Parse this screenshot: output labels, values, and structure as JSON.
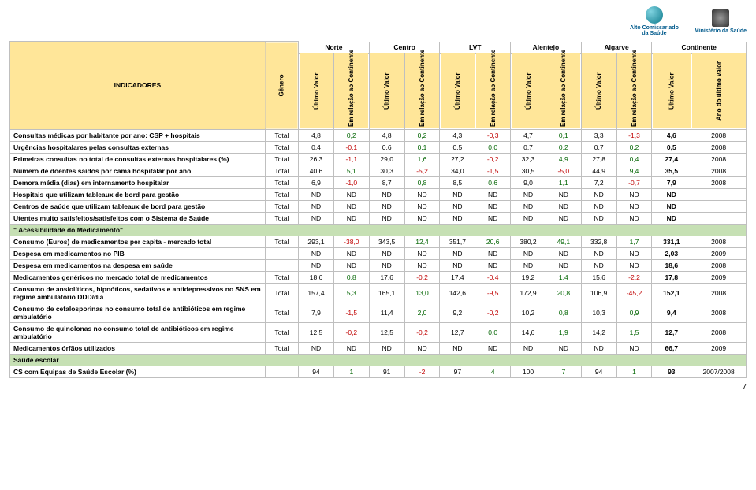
{
  "logos": [
    {
      "name": "logo-acs",
      "text1": "Alto Comissariado",
      "text2": "da Saúde",
      "color": "#17a2b8"
    },
    {
      "name": "logo-min",
      "text1": "Ministério da Saúde",
      "text2": "",
      "color": "#555555"
    }
  ],
  "regions": [
    "Norte",
    "Centro",
    "LVT",
    "Alentejo",
    "Algarve",
    "Continente"
  ],
  "col_labels": {
    "indicadores": "INDICADORES",
    "genero": "Gênero",
    "ultimo_valor": "Último Valor",
    "em_relacao": "Em relação ao Continente",
    "ano": "Ano do último valor"
  },
  "colors": {
    "header_bg": "#ffe699",
    "section_bg": "#c6e0b4",
    "border": "#bfbfbf",
    "neg": "#c00000",
    "pos": "#006400"
  },
  "rows": [
    {
      "type": "data",
      "label": "Consultas médicas por habitante por ano: CSP + hospitais",
      "gen": "Total",
      "vals": [
        "4,8",
        "0,2",
        "4,8",
        "0,2",
        "4,3",
        "-0,3",
        "4,7",
        "0,1",
        "3,3",
        "-1,3"
      ],
      "cont": "4,6",
      "year": "2008"
    },
    {
      "type": "data",
      "label": "Urgências hospitalares pelas consultas externas",
      "gen": "Total",
      "vals": [
        "0,4",
        "-0,1",
        "0,6",
        "0,1",
        "0,5",
        "0,0",
        "0,7",
        "0,2",
        "0,7",
        "0,2"
      ],
      "cont": "0,5",
      "year": "2008"
    },
    {
      "type": "data",
      "label": "Primeiras consultas no total de consultas externas hospitalares (%)",
      "gen": "Total",
      "vals": [
        "26,3",
        "-1,1",
        "29,0",
        "1,6",
        "27,2",
        "-0,2",
        "32,3",
        "4,9",
        "27,8",
        "0,4"
      ],
      "cont": "27,4",
      "year": "2008"
    },
    {
      "type": "data",
      "label": "Número de doentes saídos por cama hospitalar por ano",
      "gen": "Total",
      "vals": [
        "40,6",
        "5,1",
        "30,3",
        "-5,2",
        "34,0",
        "-1,5",
        "30,5",
        "-5,0",
        "44,9",
        "9,4"
      ],
      "cont": "35,5",
      "year": "2008"
    },
    {
      "type": "data",
      "label": "Demora média (dias) em internamento hospitalar",
      "gen": "Total",
      "vals": [
        "6,9",
        "-1,0",
        "8,7",
        "0,8",
        "8,5",
        "0,6",
        "9,0",
        "1,1",
        "7,2",
        "-0,7"
      ],
      "cont": "7,9",
      "year": "2008"
    },
    {
      "type": "data",
      "label": "Hospitais que utilizam tableaux de bord para gestão",
      "gen": "Total",
      "vals": [
        "ND",
        "ND",
        "ND",
        "ND",
        "ND",
        "ND",
        "ND",
        "ND",
        "ND",
        "ND"
      ],
      "cont": "ND",
      "year": ""
    },
    {
      "type": "data",
      "label": "Centros de saúde que utilizam tableaux de bord para gestão",
      "gen": "Total",
      "vals": [
        "ND",
        "ND",
        "ND",
        "ND",
        "ND",
        "ND",
        "ND",
        "ND",
        "ND",
        "ND"
      ],
      "cont": "ND",
      "year": ""
    },
    {
      "type": "data",
      "label": "Utentes muito satisfeitos/satisfeitos com o Sistema de Saúde",
      "gen": "Total",
      "vals": [
        "ND",
        "ND",
        "ND",
        "ND",
        "ND",
        "ND",
        "ND",
        "ND",
        "ND",
        "ND"
      ],
      "cont": "ND",
      "year": ""
    },
    {
      "type": "section",
      "label": "\" Acessibilidade do Medicamento\""
    },
    {
      "type": "data",
      "label": "Consumo (Euros) de medicamentos per capita - mercado total",
      "gen": "Total",
      "vals": [
        "293,1",
        "-38,0",
        "343,5",
        "12,4",
        "351,7",
        "20,6",
        "380,2",
        "49,1",
        "332,8",
        "1,7"
      ],
      "cont": "331,1",
      "year": "2008"
    },
    {
      "type": "data",
      "label": "Despesa em medicamentos no PIB",
      "gen": "",
      "vals": [
        "ND",
        "ND",
        "ND",
        "ND",
        "ND",
        "ND",
        "ND",
        "ND",
        "ND",
        "ND"
      ],
      "cont": "2,03",
      "year": "2009"
    },
    {
      "type": "data",
      "label": "Despesa em medicamentos na despesa em saúde",
      "gen": "",
      "vals": [
        "ND",
        "ND",
        "ND",
        "ND",
        "ND",
        "ND",
        "ND",
        "ND",
        "ND",
        "ND"
      ],
      "cont": "18,6",
      "year": "2008"
    },
    {
      "type": "data",
      "label": "Medicamentos genéricos no mercado total de medicamentos",
      "gen": "Total",
      "vals": [
        "18,6",
        "0,8",
        "17,6",
        "-0,2",
        "17,4",
        "-0,4",
        "19,2",
        "1,4",
        "15,6",
        "-2,2"
      ],
      "cont": "17,8",
      "year": "2009"
    },
    {
      "type": "data",
      "label": "Consumo de ansiolíticos, hipnóticos, sedativos e antidepressivos no SNS em regime ambulatório DDD/dia",
      "gen": "Total",
      "vals": [
        "157,4",
        "5,3",
        "165,1",
        "13,0",
        "142,6",
        "-9,5",
        "172,9",
        "20,8",
        "106,9",
        "-45,2"
      ],
      "cont": "152,1",
      "year": "2008"
    },
    {
      "type": "data",
      "label": "Consumo de cefalosporinas no consumo total de antibióticos em regime ambulatório",
      "gen": "Total",
      "vals": [
        "7,9",
        "-1,5",
        "11,4",
        "2,0",
        "9,2",
        "-0,2",
        "10,2",
        "0,8",
        "10,3",
        "0,9"
      ],
      "cont": "9,4",
      "year": "2008"
    },
    {
      "type": "data",
      "label": "Consumo de quinolonas no consumo total de antibióticos em regime ambulatório",
      "gen": "Total",
      "vals": [
        "12,5",
        "-0,2",
        "12,5",
        "-0,2",
        "12,7",
        "0,0",
        "14,6",
        "1,9",
        "14,2",
        "1,5"
      ],
      "cont": "12,7",
      "year": "2008"
    },
    {
      "type": "data",
      "label": "Medicamentos órfãos utilizados",
      "gen": "Total",
      "vals": [
        "ND",
        "ND",
        "ND",
        "ND",
        "ND",
        "ND",
        "ND",
        "ND",
        "ND",
        "ND"
      ],
      "cont": "66,7",
      "year": "2009"
    },
    {
      "type": "section",
      "label": "Saúde escolar"
    },
    {
      "type": "data",
      "label": "CS com Equipas de Saúde Escolar (%)",
      "gen": "",
      "vals": [
        "94",
        "1",
        "91",
        "-2",
        "97",
        "4",
        "100",
        "7",
        "94",
        "1"
      ],
      "cont": "93",
      "year": "2007/2008"
    }
  ],
  "page_number": "7"
}
